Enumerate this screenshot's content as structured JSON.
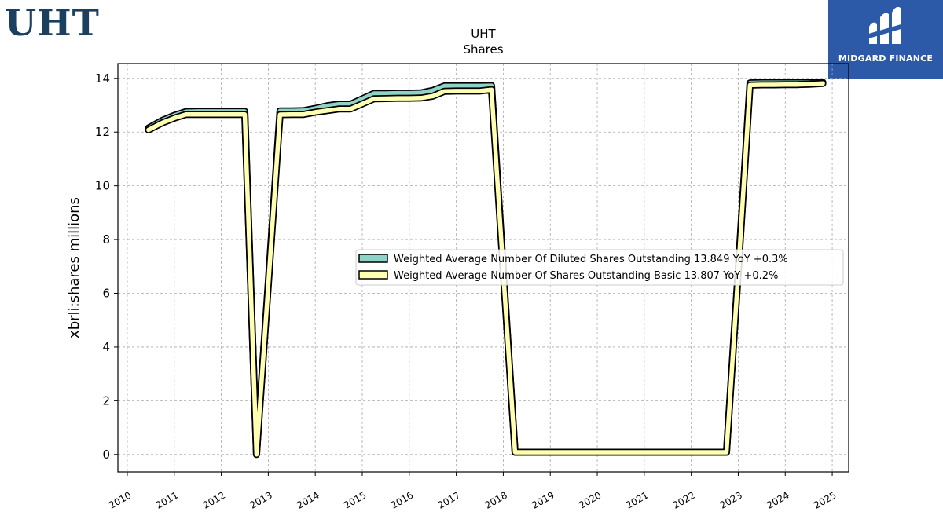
{
  "header": {
    "ticker": "UHT"
  },
  "brand": {
    "name": "MIDGARD FINANCE",
    "icon": "midgard-logo-icon",
    "color": "#2c5aa8"
  },
  "chart_data": {
    "type": "line",
    "title": "UHT",
    "subtitle": "Shares",
    "xlabel": "",
    "ylabel": "xbrli:shares millions",
    "xlim": [
      2009.8,
      2025.35
    ],
    "ylim": [
      -0.65,
      14.55
    ],
    "xticks": [
      "2010",
      "2011",
      "2012",
      "2013",
      "2014",
      "2015",
      "2016",
      "2017",
      "2018",
      "2019",
      "2020",
      "2021",
      "2022",
      "2023",
      "2024",
      "2025"
    ],
    "yticks": [
      0,
      2,
      4,
      6,
      8,
      10,
      12,
      14
    ],
    "grid": true,
    "legend_position": "center-right",
    "series": [
      {
        "name": "Weighted Average Number Of Diluted Shares Outstanding  13.849 YoY +0.3%",
        "color": "#8dd3c7",
        "x": [
          2010.45,
          2010.75,
          2011.0,
          2011.25,
          2011.5,
          2011.75,
          2012.0,
          2012.25,
          2012.5,
          2012.75,
          2013.0,
          2013.25,
          2013.5,
          2013.75,
          2014.0,
          2014.25,
          2014.5,
          2014.75,
          2015.0,
          2015.25,
          2015.5,
          2015.75,
          2016.0,
          2016.25,
          2016.5,
          2016.75,
          2017.0,
          2017.25,
          2017.5,
          2017.75,
          2018.0,
          2018.25,
          2018.5,
          2018.75,
          2019.0,
          2019.25,
          2019.5,
          2019.75,
          2020.0,
          2020.25,
          2020.5,
          2020.75,
          2021.0,
          2021.25,
          2021.5,
          2021.75,
          2022.0,
          2022.25,
          2022.5,
          2022.75,
          2023.0,
          2023.25,
          2023.5,
          2023.75,
          2024.0,
          2024.25,
          2024.5,
          2024.8
        ],
        "y": [
          12.15,
          12.44,
          12.62,
          12.76,
          12.77,
          12.77,
          12.77,
          12.77,
          12.77,
          0.0,
          6.4,
          12.79,
          12.79,
          12.8,
          12.88,
          12.98,
          13.04,
          13.04,
          13.24,
          13.44,
          13.44,
          13.45,
          13.45,
          13.46,
          13.55,
          13.72,
          13.72,
          13.72,
          13.72,
          13.73,
          6.9,
          0.08,
          0.08,
          0.08,
          0.08,
          0.08,
          0.08,
          0.08,
          0.08,
          0.08,
          0.08,
          0.08,
          0.08,
          0.08,
          0.08,
          0.08,
          0.08,
          0.08,
          0.08,
          0.08,
          6.9,
          13.83,
          13.84,
          13.84,
          13.84,
          13.84,
          13.84,
          13.85
        ]
      },
      {
        "name": "Weighted Average Number Of Shares Outstanding Basic  13.807 YoY +0.2%",
        "color": "#ffffb3",
        "x": [
          2010.45,
          2010.75,
          2011.0,
          2011.25,
          2011.5,
          2011.75,
          2012.0,
          2012.25,
          2012.5,
          2012.75,
          2013.0,
          2013.25,
          2013.5,
          2013.75,
          2014.0,
          2014.25,
          2014.5,
          2014.75,
          2015.0,
          2015.25,
          2015.5,
          2015.75,
          2016.0,
          2016.25,
          2016.5,
          2016.75,
          2017.0,
          2017.25,
          2017.5,
          2017.75,
          2018.0,
          2018.25,
          2018.5,
          2018.75,
          2019.0,
          2019.25,
          2019.5,
          2019.75,
          2020.0,
          2020.25,
          2020.5,
          2020.75,
          2021.0,
          2021.25,
          2021.5,
          2021.75,
          2022.0,
          2022.25,
          2022.5,
          2022.75,
          2023.0,
          2023.25,
          2023.5,
          2023.75,
          2024.0,
          2024.25,
          2024.5,
          2024.8
        ],
        "y": [
          12.08,
          12.35,
          12.52,
          12.66,
          12.66,
          12.66,
          12.66,
          12.66,
          12.66,
          0.0,
          6.3,
          12.65,
          12.66,
          12.66,
          12.74,
          12.8,
          12.86,
          12.86,
          13.05,
          13.24,
          13.25,
          13.26,
          13.26,
          13.27,
          13.34,
          13.52,
          13.53,
          13.53,
          13.53,
          13.58,
          6.8,
          0.08,
          0.08,
          0.08,
          0.08,
          0.08,
          0.08,
          0.08,
          0.08,
          0.08,
          0.08,
          0.08,
          0.08,
          0.08,
          0.08,
          0.08,
          0.08,
          0.08,
          0.08,
          0.08,
          6.8,
          13.75,
          13.76,
          13.76,
          13.77,
          13.77,
          13.78,
          13.81
        ]
      }
    ]
  }
}
